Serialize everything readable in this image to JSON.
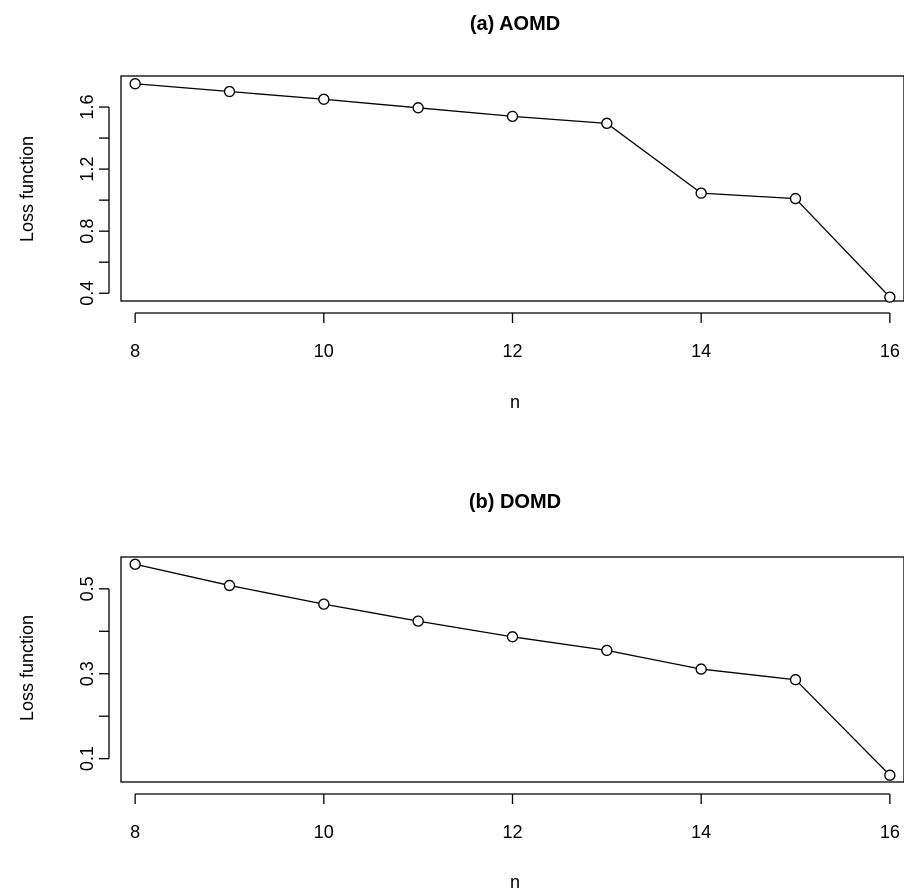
{
  "chart_data": [
    {
      "type": "line",
      "title": "(a) AOMD",
      "xlabel": "n",
      "ylabel": "Loss function",
      "x": [
        8,
        9,
        10,
        11,
        12,
        13,
        14,
        15,
        16
      ],
      "series": [
        {
          "values": [
            1.75,
            1.7,
            1.65,
            1.595,
            1.54,
            1.495,
            1.045,
            1.01,
            0.375
          ]
        }
      ],
      "xlim": [
        7.85,
        16.15
      ],
      "ylim": [
        0.35,
        1.8
      ],
      "x_ticks": [
        8,
        10,
        12,
        14,
        16
      ],
      "y_ticks": [
        0.4,
        0.6,
        0.8,
        1.0,
        1.2,
        1.4,
        1.6
      ],
      "y_tick_labels": [
        "0.4",
        "",
        "0.8",
        "",
        "1.2",
        "",
        "1.6"
      ],
      "marker": "open-circle",
      "color": "#000000",
      "grid": false,
      "legend": "none"
    },
    {
      "type": "line",
      "title": "(b) DOMD",
      "xlabel": "n",
      "ylabel": "Loss function",
      "x": [
        8,
        9,
        10,
        11,
        12,
        13,
        14,
        15,
        16
      ],
      "series": [
        {
          "values": [
            0.558,
            0.508,
            0.464,
            0.424,
            0.387,
            0.355,
            0.311,
            0.286,
            0.061
          ]
        }
      ],
      "xlim": [
        7.85,
        16.15
      ],
      "ylim": [
        0.045,
        0.575
      ],
      "x_ticks": [
        8,
        10,
        12,
        14,
        16
      ],
      "y_ticks": [
        0.1,
        0.2,
        0.3,
        0.4,
        0.5
      ],
      "y_tick_labels": [
        "0.1",
        "",
        "0.3",
        "",
        "0.5"
      ],
      "marker": "open-circle",
      "color": "#000000",
      "grid": false,
      "legend": "none"
    }
  ]
}
